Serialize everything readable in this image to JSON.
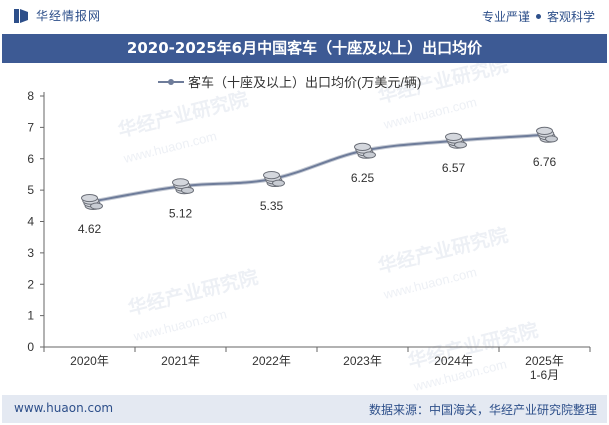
{
  "header": {
    "brand_name": "华经情报网",
    "slogan_left": "专业严谨",
    "slogan_right": "客观科学"
  },
  "title": "2020-2025年6月中国客车（十座及以上）出口均价",
  "footer": {
    "website": "www.huaon.com",
    "source": "数据来源：中国海关，华经产业研究院整理"
  },
  "watermark": {
    "text_cn": "华经产业研究院",
    "text_url": "www.huaon.com"
  },
  "colors": {
    "line": "#6e7c9a",
    "title_bg": "#3d5a94",
    "brand": "#2d4f8a",
    "footer_bg": "#e4e9f2"
  },
  "chart_data": {
    "type": "line",
    "title": "2020-2025年6月中国客车（十座及以上）出口均价",
    "categories": [
      "2020年",
      "2021年",
      "2022年",
      "2023年",
      "2024年",
      "2025年\n1-6月"
    ],
    "series": [
      {
        "name": "客车（十座及以上）出口均价(万美元/辆)",
        "values": [
          4.62,
          5.12,
          5.35,
          6.25,
          6.57,
          6.76
        ]
      }
    ],
    "data_labels": [
      "4.62",
      "5.12",
      "5.35",
      "6.25",
      "6.57",
      "6.76"
    ],
    "ylim": [
      0,
      8
    ],
    "yticks": [
      "0",
      "1",
      "2",
      "3",
      "4",
      "5",
      "6",
      "7",
      "8"
    ],
    "legend": "top-center",
    "grid": false,
    "xlabel": "",
    "ylabel": ""
  }
}
